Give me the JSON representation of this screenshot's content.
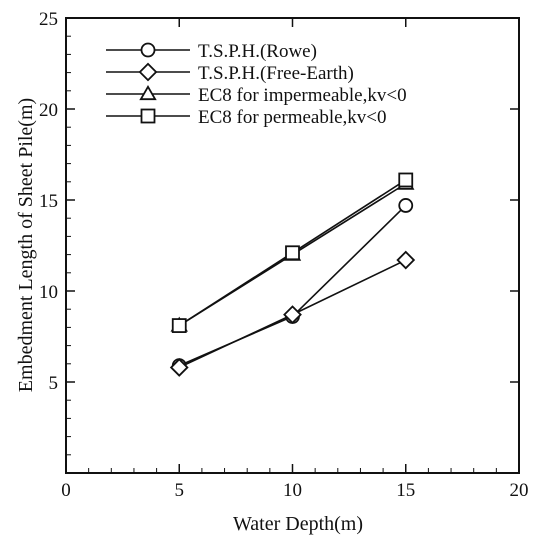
{
  "chart_data": {
    "type": "line",
    "title": "",
    "xlabel": "Water Depth(m)",
    "ylabel": "Embedment Length of Sheet Pile(m)",
    "xlim": [
      0,
      20
    ],
    "ylim": [
      0,
      25
    ],
    "xticks": [
      0,
      5,
      10,
      15,
      20
    ],
    "yticks": [
      5,
      10,
      15,
      20,
      25
    ],
    "grid": false,
    "legend_position": "top-left",
    "series": [
      {
        "name": "T.S.P.H.(Rowe)",
        "marker": "circle",
        "x": [
          5,
          10,
          15
        ],
        "y": [
          5.9,
          8.6,
          14.7
        ]
      },
      {
        "name": "T.S.P.H.(Free-Earth)",
        "marker": "diamond",
        "x": [
          5,
          10,
          15
        ],
        "y": [
          5.8,
          8.7,
          11.7
        ]
      },
      {
        "name": "EC8 for impermeable,kv<0",
        "marker": "triangle",
        "x": [
          5,
          10,
          15
        ],
        "y": [
          8.1,
          12.0,
          15.9
        ]
      },
      {
        "name": "EC8 for permeable,kv<0",
        "marker": "square",
        "x": [
          5,
          10,
          15
        ],
        "y": [
          8.1,
          12.1,
          16.1
        ]
      }
    ]
  }
}
